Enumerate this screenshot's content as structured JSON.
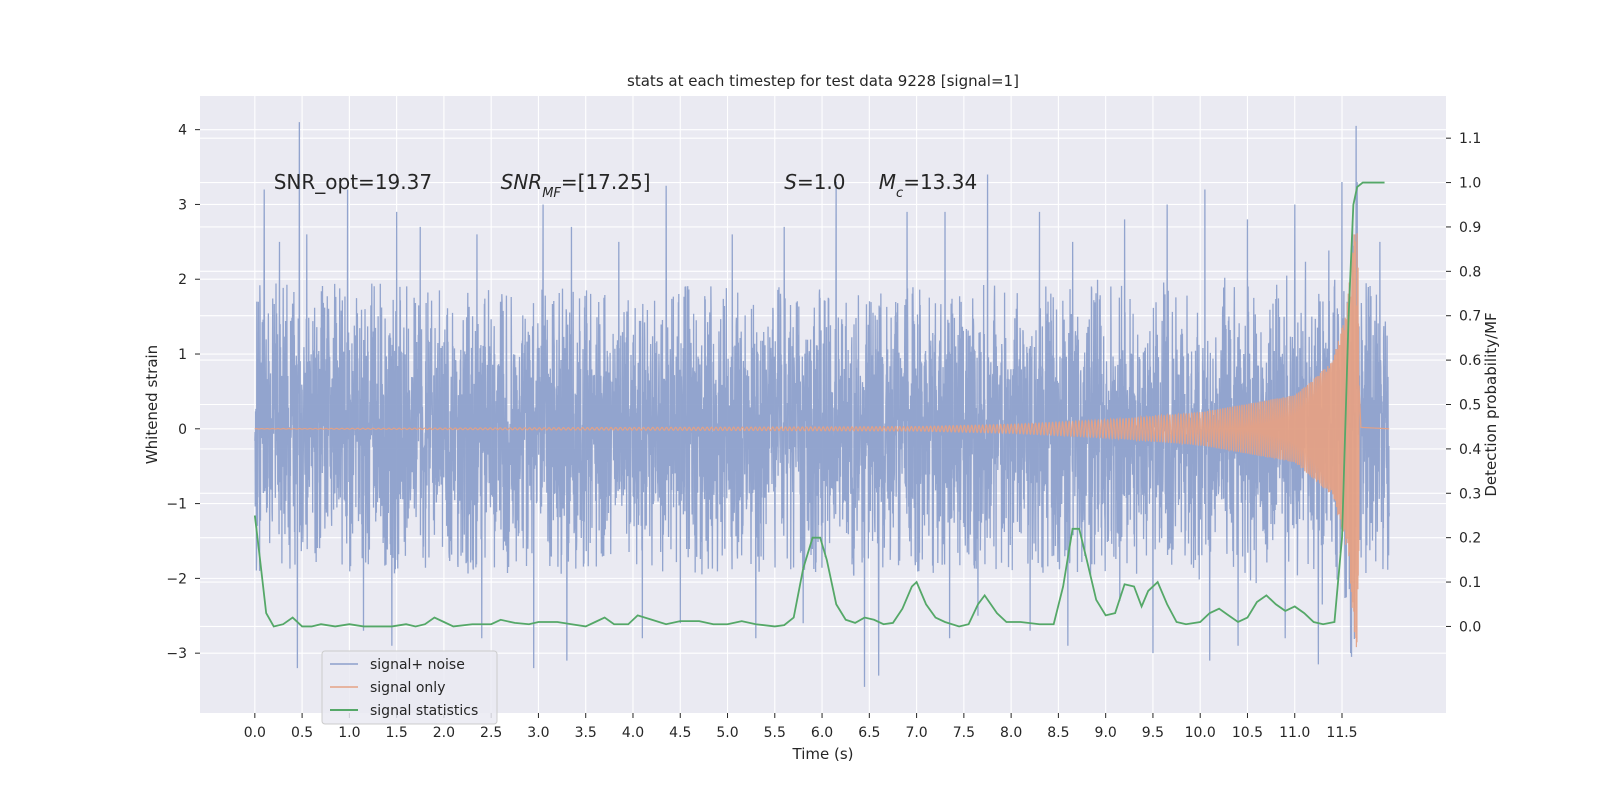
{
  "chart_data": {
    "type": "line",
    "title": "stats at each timestep for test data 9228 [signal=1]",
    "xlabel": "Time (s)",
    "ylabel": "Whitened strain",
    "y2label": "Detection probability/MF",
    "xlim": [
      -0.58,
      12.6
    ],
    "ylim": [
      -3.8,
      4.45
    ],
    "y2lim": [
      -0.195,
      1.195
    ],
    "x_ticks": [
      0.0,
      0.5,
      1.0,
      1.5,
      2.0,
      2.5,
      3.0,
      3.5,
      4.0,
      4.5,
      5.0,
      5.5,
      6.0,
      6.5,
      7.0,
      7.5,
      8.0,
      8.5,
      9.0,
      9.5,
      10.0,
      10.5,
      11.0,
      11.5
    ],
    "x_tick_labels": [
      "0.0",
      "0.5",
      "1.0",
      "1.5",
      "2.0",
      "2.5",
      "3.0",
      "3.5",
      "4.0",
      "4.5",
      "5.0",
      "5.5",
      "6.0",
      "6.5",
      "7.0",
      "7.5",
      "8.0",
      "8.5",
      "9.0",
      "9.5",
      "10.0",
      "10.5",
      "11.0",
      "11.5"
    ],
    "y_ticks": [
      -3,
      -2,
      -1,
      0,
      1,
      2,
      3,
      4
    ],
    "y_tick_labels": [
      "−3",
      "−2",
      "−1",
      "0",
      "1",
      "2",
      "3",
      "4"
    ],
    "y2_ticks": [
      0.0,
      0.1,
      0.2,
      0.3,
      0.4,
      0.5,
      0.6,
      0.7,
      0.8,
      0.9,
      1.0,
      1.1
    ],
    "y2_tick_labels": [
      "0.0",
      "0.1",
      "0.2",
      "0.3",
      "0.4",
      "0.5",
      "0.6",
      "0.7",
      "0.8",
      "0.9",
      "1.0",
      "1.1"
    ],
    "grid": true,
    "legend_position": "lower-left",
    "annotations": [
      {
        "text": "SNR_opt=19.37",
        "x": 0.2,
        "y": 3.3
      },
      {
        "text": "SNR_MF=[17.25]",
        "x": 2.6,
        "y": 3.3
      },
      {
        "text": "S=1.0",
        "x": 5.6,
        "y": 3.3
      },
      {
        "text": "M_c=13.34",
        "x": 6.6,
        "y": 3.3
      }
    ],
    "series": [
      {
        "name": "signal+ noise",
        "color": "#8da0cb",
        "axis": "left",
        "kind": "noise-trace",
        "t_range": [
          0.0,
          12.0
        ],
        "band_1sigma": 1.5,
        "peaks_high": [
          [
            0.02,
            1.7
          ],
          [
            0.1,
            3.2
          ],
          [
            0.26,
            2.5
          ],
          [
            0.47,
            4.1
          ],
          [
            0.55,
            2.6
          ],
          [
            0.98,
            3.2
          ],
          [
            1.5,
            2.9
          ],
          [
            1.75,
            2.7
          ],
          [
            2.35,
            2.6
          ],
          [
            3.05,
            3.0
          ],
          [
            3.35,
            2.7
          ],
          [
            3.85,
            2.5
          ],
          [
            4.35,
            3.25
          ],
          [
            5.05,
            2.6
          ],
          [
            5.6,
            2.7
          ],
          [
            6.15,
            3.3
          ],
          [
            6.45,
            2.6
          ],
          [
            6.9,
            2.9
          ],
          [
            7.3,
            2.9
          ],
          [
            7.75,
            3.4
          ],
          [
            8.3,
            2.9
          ],
          [
            8.65,
            2.5
          ],
          [
            9.2,
            2.8
          ],
          [
            9.65,
            3.0
          ],
          [
            10.05,
            3.2
          ],
          [
            10.5,
            2.8
          ],
          [
            11.0,
            3.0
          ],
          [
            11.5,
            3.3
          ],
          [
            11.65,
            4.05
          ],
          [
            11.9,
            2.5
          ]
        ],
        "peaks_low": [
          [
            0.05,
            -1.9
          ],
          [
            0.45,
            -3.2
          ],
          [
            1.15,
            -2.7
          ],
          [
            1.45,
            -2.9
          ],
          [
            2.4,
            -2.8
          ],
          [
            2.95,
            -3.2
          ],
          [
            3.3,
            -3.1
          ],
          [
            4.1,
            -2.8
          ],
          [
            4.5,
            -2.6
          ],
          [
            5.3,
            -2.8
          ],
          [
            5.8,
            -2.6
          ],
          [
            6.45,
            -3.45
          ],
          [
            6.6,
            -3.3
          ],
          [
            7.35,
            -2.8
          ],
          [
            7.65,
            -2.5
          ],
          [
            8.2,
            -2.7
          ],
          [
            8.6,
            -2.9
          ],
          [
            9.15,
            -2.3
          ],
          [
            9.5,
            -3.0
          ],
          [
            10.1,
            -3.1
          ],
          [
            10.4,
            -2.9
          ],
          [
            10.9,
            -2.8
          ],
          [
            11.25,
            -3.15
          ],
          [
            11.6,
            -3.05
          ]
        ]
      },
      {
        "name": "signal only",
        "color": "#e5a185",
        "axis": "left",
        "kind": "chirp",
        "t_range": [
          0.0,
          12.0
        ],
        "t_merger": 11.68,
        "amplitude_envelope": [
          [
            0.0,
            0.003
          ],
          [
            7.0,
            0.03
          ],
          [
            8.0,
            0.06
          ],
          [
            9.0,
            0.12
          ],
          [
            10.0,
            0.22
          ],
          [
            11.0,
            0.45
          ],
          [
            11.4,
            0.9
          ],
          [
            11.55,
            1.6
          ],
          [
            11.62,
            2.6
          ],
          [
            11.66,
            3.0
          ],
          [
            11.7,
            0.05
          ],
          [
            12.0,
            0.0
          ]
        ]
      },
      {
        "name": "signal statistics",
        "color": "#55a868",
        "axis": "right",
        "kind": "line",
        "points": [
          [
            0.0,
            0.25
          ],
          [
            0.05,
            0.16
          ],
          [
            0.12,
            0.03
          ],
          [
            0.2,
            0.0
          ],
          [
            0.3,
            0.005
          ],
          [
            0.4,
            0.02
          ],
          [
            0.5,
            0.0
          ],
          [
            0.6,
            0.0
          ],
          [
            0.7,
            0.005
          ],
          [
            0.85,
            0.0
          ],
          [
            1.0,
            0.005
          ],
          [
            1.15,
            0.0
          ],
          [
            1.3,
            0.0
          ],
          [
            1.45,
            0.0
          ],
          [
            1.6,
            0.005
          ],
          [
            1.7,
            0.0
          ],
          [
            1.8,
            0.005
          ],
          [
            1.9,
            0.02
          ],
          [
            2.0,
            0.01
          ],
          [
            2.1,
            0.0
          ],
          [
            2.3,
            0.005
          ],
          [
            2.5,
            0.005
          ],
          [
            2.6,
            0.015
          ],
          [
            2.75,
            0.008
          ],
          [
            2.9,
            0.005
          ],
          [
            3.0,
            0.01
          ],
          [
            3.2,
            0.01
          ],
          [
            3.35,
            0.005
          ],
          [
            3.5,
            0.0
          ],
          [
            3.6,
            0.01
          ],
          [
            3.7,
            0.02
          ],
          [
            3.8,
            0.005
          ],
          [
            3.95,
            0.005
          ],
          [
            4.05,
            0.025
          ],
          [
            4.2,
            0.015
          ],
          [
            4.35,
            0.005
          ],
          [
            4.5,
            0.012
          ],
          [
            4.7,
            0.012
          ],
          [
            4.85,
            0.005
          ],
          [
            5.0,
            0.005
          ],
          [
            5.15,
            0.012
          ],
          [
            5.3,
            0.005
          ],
          [
            5.5,
            0.0
          ],
          [
            5.6,
            0.003
          ],
          [
            5.7,
            0.02
          ],
          [
            5.8,
            0.13
          ],
          [
            5.9,
            0.2
          ],
          [
            5.98,
            0.2
          ],
          [
            6.05,
            0.15
          ],
          [
            6.15,
            0.05
          ],
          [
            6.25,
            0.015
          ],
          [
            6.35,
            0.008
          ],
          [
            6.45,
            0.02
          ],
          [
            6.55,
            0.015
          ],
          [
            6.65,
            0.005
          ],
          [
            6.75,
            0.008
          ],
          [
            6.85,
            0.04
          ],
          [
            6.95,
            0.09
          ],
          [
            7.0,
            0.1
          ],
          [
            7.1,
            0.05
          ],
          [
            7.2,
            0.02
          ],
          [
            7.3,
            0.01
          ],
          [
            7.45,
            0.0
          ],
          [
            7.55,
            0.005
          ],
          [
            7.65,
            0.05
          ],
          [
            7.72,
            0.07
          ],
          [
            7.85,
            0.03
          ],
          [
            7.95,
            0.01
          ],
          [
            8.1,
            0.01
          ],
          [
            8.3,
            0.005
          ],
          [
            8.45,
            0.005
          ],
          [
            8.55,
            0.09
          ],
          [
            8.65,
            0.22
          ],
          [
            8.72,
            0.22
          ],
          [
            8.8,
            0.15
          ],
          [
            8.9,
            0.06
          ],
          [
            9.0,
            0.025
          ],
          [
            9.1,
            0.03
          ],
          [
            9.2,
            0.095
          ],
          [
            9.3,
            0.09
          ],
          [
            9.38,
            0.045
          ],
          [
            9.45,
            0.08
          ],
          [
            9.55,
            0.1
          ],
          [
            9.65,
            0.05
          ],
          [
            9.75,
            0.01
          ],
          [
            9.85,
            0.005
          ],
          [
            10.0,
            0.01
          ],
          [
            10.1,
            0.03
          ],
          [
            10.2,
            0.04
          ],
          [
            10.3,
            0.025
          ],
          [
            10.4,
            0.01
          ],
          [
            10.5,
            0.02
          ],
          [
            10.6,
            0.055
          ],
          [
            10.7,
            0.07
          ],
          [
            10.8,
            0.05
          ],
          [
            10.9,
            0.035
          ],
          [
            11.0,
            0.045
          ],
          [
            11.1,
            0.03
          ],
          [
            11.2,
            0.01
          ],
          [
            11.3,
            0.005
          ],
          [
            11.42,
            0.01
          ],
          [
            11.5,
            0.2
          ],
          [
            11.57,
            0.7
          ],
          [
            11.62,
            0.95
          ],
          [
            11.66,
            0.99
          ],
          [
            11.72,
            1.0
          ],
          [
            11.95,
            1.0
          ]
        ]
      }
    ]
  }
}
